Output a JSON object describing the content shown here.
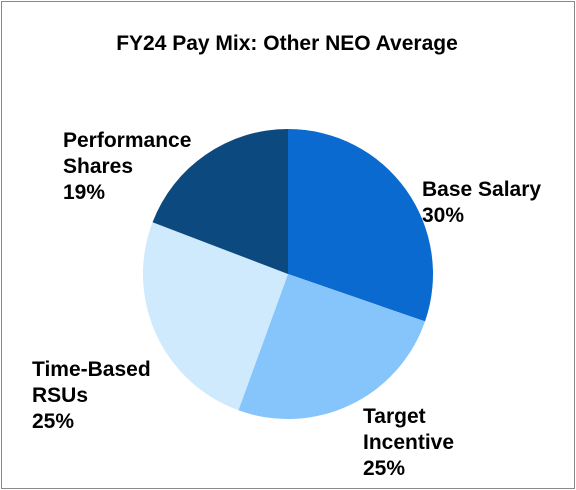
{
  "chart_data": {
    "type": "pie",
    "title": "FY24 Pay Mix: Other NEO Average",
    "slices": [
      {
        "label_lines": [
          "Base Salary",
          "30%"
        ],
        "name": "Base Salary",
        "value": 30,
        "color": "#0a6ad0"
      },
      {
        "label_lines": [
          "Target",
          "Incentive",
          "25%"
        ],
        "name": "Target Incentive",
        "value": 25,
        "color": "#86c5fb"
      },
      {
        "label_lines": [
          "Time-Based",
          "RSUs",
          "25%"
        ],
        "name": "Time-Based RSUs",
        "value": 25,
        "color": "#cfe9fd"
      },
      {
        "label_lines": [
          "Performance",
          "Shares",
          "19%"
        ],
        "name": "Performance Shares",
        "value": 19,
        "color": "#0b497f"
      }
    ],
    "start_angle_deg": 0,
    "direction": "clockwise",
    "legend": "none"
  }
}
